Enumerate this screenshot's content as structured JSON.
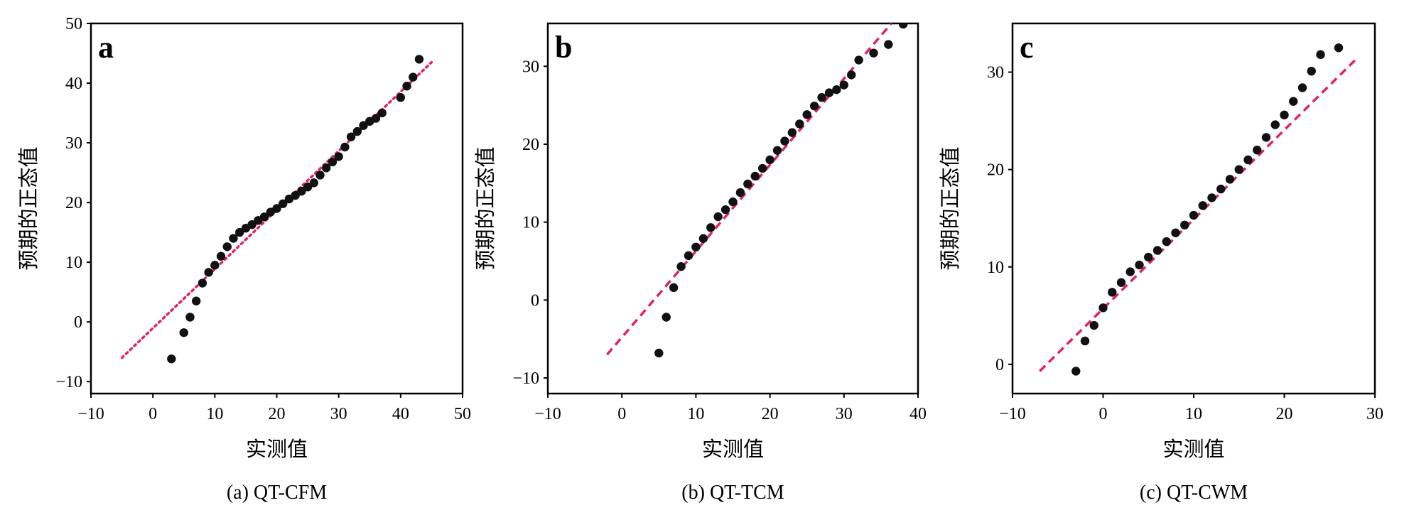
{
  "chart_data": [
    {
      "type": "scatter",
      "panel_letter": "a",
      "caption": "(a) QT-CFM",
      "xlabel": "实测值",
      "ylabel": "预期的正态值",
      "xlim": [
        -10,
        50
      ],
      "ylim": [
        -12,
        50
      ],
      "xticks": [
        -10,
        0,
        10,
        20,
        30,
        40,
        50
      ],
      "yticks": [
        -10,
        0,
        10,
        20,
        30,
        40,
        50
      ],
      "grid": false,
      "reference_line": {
        "x": [
          -5,
          45
        ],
        "y": [
          -6,
          43.5
        ],
        "color": "#e0245e",
        "style": "dotted"
      },
      "points": {
        "x": [
          3,
          5,
          6,
          7,
          8,
          9,
          10,
          11,
          12,
          13,
          14,
          15,
          16,
          17,
          18,
          19,
          20,
          21,
          22,
          23,
          24,
          25,
          26,
          27,
          28,
          29,
          30,
          31,
          32,
          33,
          34,
          35,
          36,
          37,
          40,
          41,
          42,
          43
        ],
        "y": [
          -6.2,
          -1.8,
          0.8,
          3.5,
          6.5,
          8.3,
          9.5,
          11.0,
          12.6,
          14.0,
          15.0,
          15.7,
          16.3,
          17.0,
          17.6,
          18.4,
          19.0,
          19.8,
          20.6,
          21.2,
          21.9,
          22.6,
          23.3,
          24.6,
          25.8,
          26.8,
          27.7,
          29.3,
          31.0,
          31.9,
          32.9,
          33.6,
          34.1,
          35.0,
          37.6,
          39.5,
          41.0,
          44.0
        ]
      }
    },
    {
      "type": "scatter",
      "panel_letter": "b",
      "caption": "(b) QT-TCM",
      "xlabel": "实测值",
      "ylabel": "预期的正态值",
      "xlim": [
        -10,
        40
      ],
      "ylim": [
        -12,
        35.5
      ],
      "xticks": [
        -10,
        0,
        10,
        20,
        30,
        40
      ],
      "yticks": [
        -10,
        0,
        10,
        20,
        30
      ],
      "grid": false,
      "reference_line": {
        "x": [
          -2,
          36.4
        ],
        "y": [
          -7,
          35.5
        ],
        "color": "#e0245e",
        "style": "dashed"
      },
      "points": {
        "x": [
          5,
          6,
          7,
          8,
          9,
          10,
          11,
          12,
          13,
          14,
          15,
          16,
          17,
          18,
          19,
          20,
          21,
          22,
          23,
          24,
          25,
          26,
          27,
          28,
          29,
          30,
          31,
          32,
          34,
          36,
          38
        ],
        "y": [
          -6.8,
          -2.2,
          1.6,
          4.3,
          5.7,
          6.8,
          7.9,
          9.3,
          10.7,
          11.6,
          12.6,
          13.8,
          14.9,
          15.9,
          16.9,
          18.0,
          19.2,
          20.4,
          21.5,
          22.6,
          23.8,
          24.9,
          26.0,
          26.6,
          27.0,
          27.6,
          28.9,
          30.8,
          31.7,
          32.8,
          35.4
        ]
      }
    },
    {
      "type": "scatter",
      "panel_letter": "c",
      "caption": "(c) QT-CWM",
      "xlabel": "实测值",
      "ylabel": "预期的正态值",
      "xlim": [
        -10,
        30
      ],
      "ylim": [
        -3,
        35
      ],
      "xticks": [
        -10,
        0,
        10,
        20,
        30
      ],
      "yticks": [
        0,
        10,
        20,
        30
      ],
      "grid": false,
      "reference_line": {
        "x": [
          -7,
          28
        ],
        "y": [
          -0.7,
          31.4
        ],
        "color": "#e0245e",
        "style": "dashed"
      },
      "points": {
        "x": [
          -3,
          -2,
          -1,
          0,
          1,
          2,
          3,
          4,
          5,
          6,
          7,
          8,
          9,
          10,
          11,
          12,
          13,
          14,
          15,
          16,
          17,
          18,
          19,
          20,
          21,
          22,
          23,
          24,
          26
        ],
        "y": [
          -0.7,
          2.4,
          4.0,
          5.8,
          7.4,
          8.4,
          9.5,
          10.2,
          11.0,
          11.7,
          12.6,
          13.5,
          14.3,
          15.3,
          16.3,
          17.1,
          18.0,
          19.0,
          20.0,
          21.0,
          22.0,
          23.3,
          24.6,
          25.6,
          27.0,
          28.4,
          30.1,
          31.8,
          32.5
        ]
      }
    }
  ]
}
